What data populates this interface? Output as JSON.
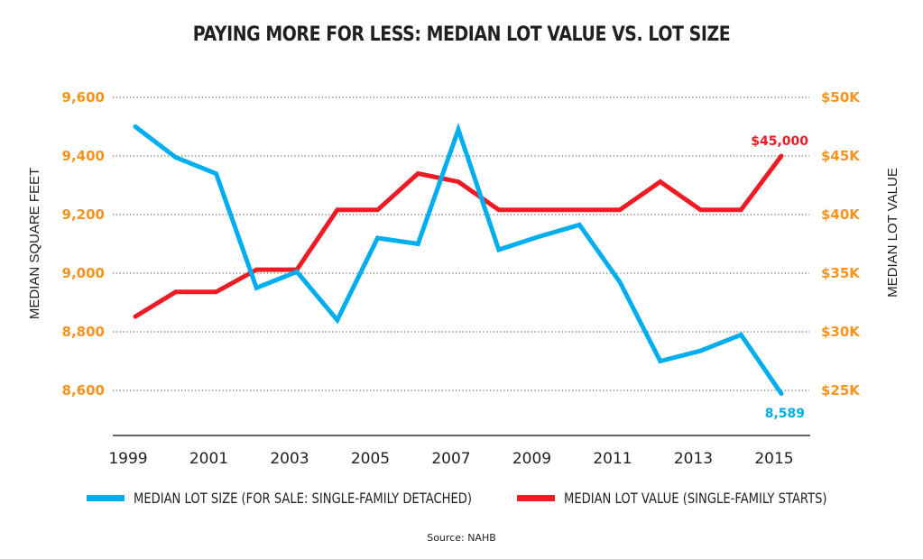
{
  "chart_data": {
    "type": "line",
    "title": "PAYING MORE FOR LESS: MEDIAN LOT VALUE VS. LOT SIZE",
    "x": [
      1999,
      2000,
      2001,
      2002,
      2003,
      2004,
      2005,
      2006,
      2007,
      2008,
      2009,
      2010,
      2011,
      2012,
      2013,
      2014,
      2015
    ],
    "xticks": [
      "1999",
      "2001",
      "2003",
      "2005",
      "2007",
      "2009",
      "2011",
      "2013",
      "2015"
    ],
    "xtick_values": [
      1999,
      2001,
      2003,
      2005,
      2007,
      2009,
      2011,
      2013,
      2015
    ],
    "xlim": [
      1999,
      2015
    ],
    "y_left": {
      "label": "MEDIAN SQUARE FEET",
      "range": [
        8600,
        9600
      ],
      "ticks": [
        9600,
        9400,
        9200,
        9000,
        8800,
        8600
      ],
      "tick_labels": [
        "9,600",
        "9,400",
        "9,200",
        "9,000",
        "8,800",
        "8,600"
      ],
      "axis_min_shown": 8400
    },
    "y_right": {
      "label": "MEDIAN LOT VALUE",
      "range": [
        25000,
        50000
      ],
      "ticks": [
        50000,
        45000,
        40000,
        35000,
        30000,
        25000
      ],
      "tick_labels": [
        "$50K",
        "$45K",
        "$40K",
        "$35K",
        "$30K",
        "$25K"
      ],
      "axis_min_shown": 20000
    },
    "series": [
      {
        "name": "MEDIAN LOT SIZE (FOR SALE: SINGLE-FAMILY DETACHED)",
        "axis": "left",
        "color": "#00aeef",
        "values": [
          9500,
          9395,
          9340,
          8950,
          9005,
          8840,
          9120,
          9100,
          9490,
          9080,
          9125,
          9165,
          8970,
          8700,
          8735,
          8790,
          8589
        ],
        "end_annotation": "8,589"
      },
      {
        "name": "MEDIAN LOT VALUE (SINGLE-FAMILY STARTS)",
        "axis": "right",
        "color": "#ed1c24",
        "values": [
          31300,
          33400,
          33400,
          35300,
          35300,
          40400,
          40400,
          43500,
          42800,
          40400,
          40400,
          40400,
          40400,
          42800,
          40400,
          40400,
          45000
        ],
        "end_annotation": "$45,000"
      }
    ],
    "grid": true,
    "legend_position": "bottom",
    "tick_color": "#f7941d",
    "source": "Source: NAHB"
  }
}
